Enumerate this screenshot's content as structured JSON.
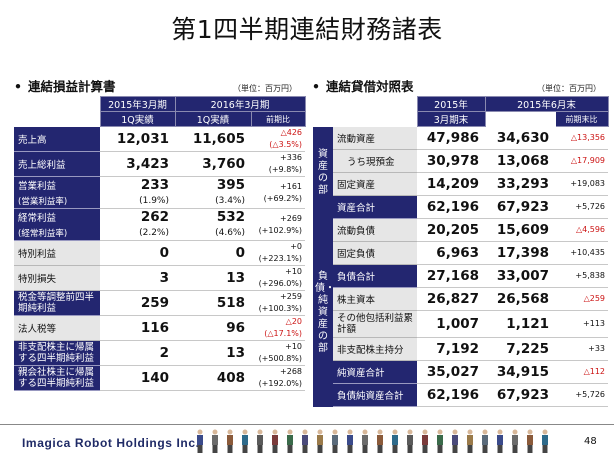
{
  "title": "第1四半期連結財務諸表",
  "left": {
    "section_title": "連結損益計算書",
    "unit": "（単位：百万円）",
    "header": {
      "col1_top": "2015年3月期",
      "col2_top": "2016年3月期",
      "col1_sub": "1Q実績",
      "col2_sub": "1Q実績",
      "col3_sub": "前期比"
    },
    "rows": [
      {
        "label": "売上高",
        "a": "12,031",
        "b": "11,605",
        "c1": "△426",
        "c2": "(△3.5%)",
        "neg": true
      },
      {
        "label": "売上総利益",
        "a": "3,423",
        "b": "3,760",
        "c1": "+336",
        "c2": "(+9.8%)",
        "neg": false
      },
      {
        "label": "営業利益",
        "a": "233",
        "b": "395",
        "c1": "+161",
        "c2": "(+69.2%)",
        "neg": false,
        "sub_label": "(営業利益率)",
        "sub_a": "(1.9%)",
        "sub_b": "(3.4%)"
      },
      {
        "label": "経常利益",
        "a": "262",
        "b": "532",
        "c1": "+269",
        "c2": "(+102.9%)",
        "neg": false,
        "sub_label": "(経常利益率)",
        "sub_a": "(2.2%)",
        "sub_b": "(4.6%)"
      },
      {
        "label": "特別利益",
        "a": "0",
        "b": "0",
        "c1": "+0",
        "c2": "(+223.1%)",
        "neg": false
      },
      {
        "label": "特別損失",
        "a": "3",
        "b": "13",
        "c1": "+10",
        "c2": "(+296.0%)",
        "neg": false
      },
      {
        "label": "税金等調整前四半期純利益",
        "a": "259",
        "b": "518",
        "c1": "+259",
        "c2": "(+100.3%)",
        "neg": false
      },
      {
        "label": "法人税等",
        "a": "116",
        "b": "96",
        "c1": "△20",
        "c2": "(△17.1%)",
        "neg": true
      },
      {
        "label": "非支配株主に帰属する四半期純利益",
        "a": "2",
        "b": "13",
        "c1": "+10",
        "c2": "(+500.8%)",
        "neg": false
      },
      {
        "label": "親会社株主に帰属する四半期純利益",
        "a": "140",
        "b": "408",
        "c1": "+268",
        "c2": "(+192.0%)",
        "neg": false
      }
    ]
  },
  "right": {
    "section_title": "連結貸借対照表",
    "unit": "（単位：百万円）",
    "header": {
      "col1_top": "2015年",
      "col2_top": "2015年6月末",
      "col1_sub": "3月期末",
      "col3_sub": "前期末比"
    },
    "group1": "資産の部",
    "group2": "負債・純資産の部",
    "rows": [
      {
        "label": "流動資産",
        "a": "47,986",
        "b": "34,630",
        "c": "△13,356",
        "neg": true
      },
      {
        "label": "うち現預金",
        "a": "30,978",
        "b": "13,068",
        "c": "△17,909",
        "neg": true
      },
      {
        "label": "固定資産",
        "a": "14,209",
        "b": "33,293",
        "c": "+19,083",
        "neg": false
      },
      {
        "label": "資産合計",
        "a": "62,196",
        "b": "67,923",
        "c": "+5,726",
        "neg": false
      },
      {
        "label": "流動負債",
        "a": "20,205",
        "b": "15,609",
        "c": "△4,596",
        "neg": true
      },
      {
        "label": "固定負債",
        "a": "6,963",
        "b": "17,398",
        "c": "+10,435",
        "neg": false
      },
      {
        "label": "負債合計",
        "a": "27,168",
        "b": "33,007",
        "c": "+5,838",
        "neg": false
      },
      {
        "label": "株主資本",
        "a": "26,827",
        "b": "26,568",
        "c": "△259",
        "neg": true
      },
      {
        "label": "その他包括利益累計額",
        "a": "1,007",
        "b": "1,121",
        "c": "+113",
        "neg": false
      },
      {
        "label": "非支配株主持分",
        "a": "7,192",
        "b": "7,225",
        "c": "+33",
        "neg": false
      },
      {
        "label": "純資産合計",
        "a": "35,027",
        "b": "34,915",
        "c": "△112",
        "neg": true
      },
      {
        "label": "負債純資産合計",
        "a": "62,196",
        "b": "67,923",
        "c": "+5,726",
        "neg": false
      }
    ]
  },
  "footer": {
    "brand": "Imagica Robot Holdings Inc.",
    "page": "48"
  }
}
